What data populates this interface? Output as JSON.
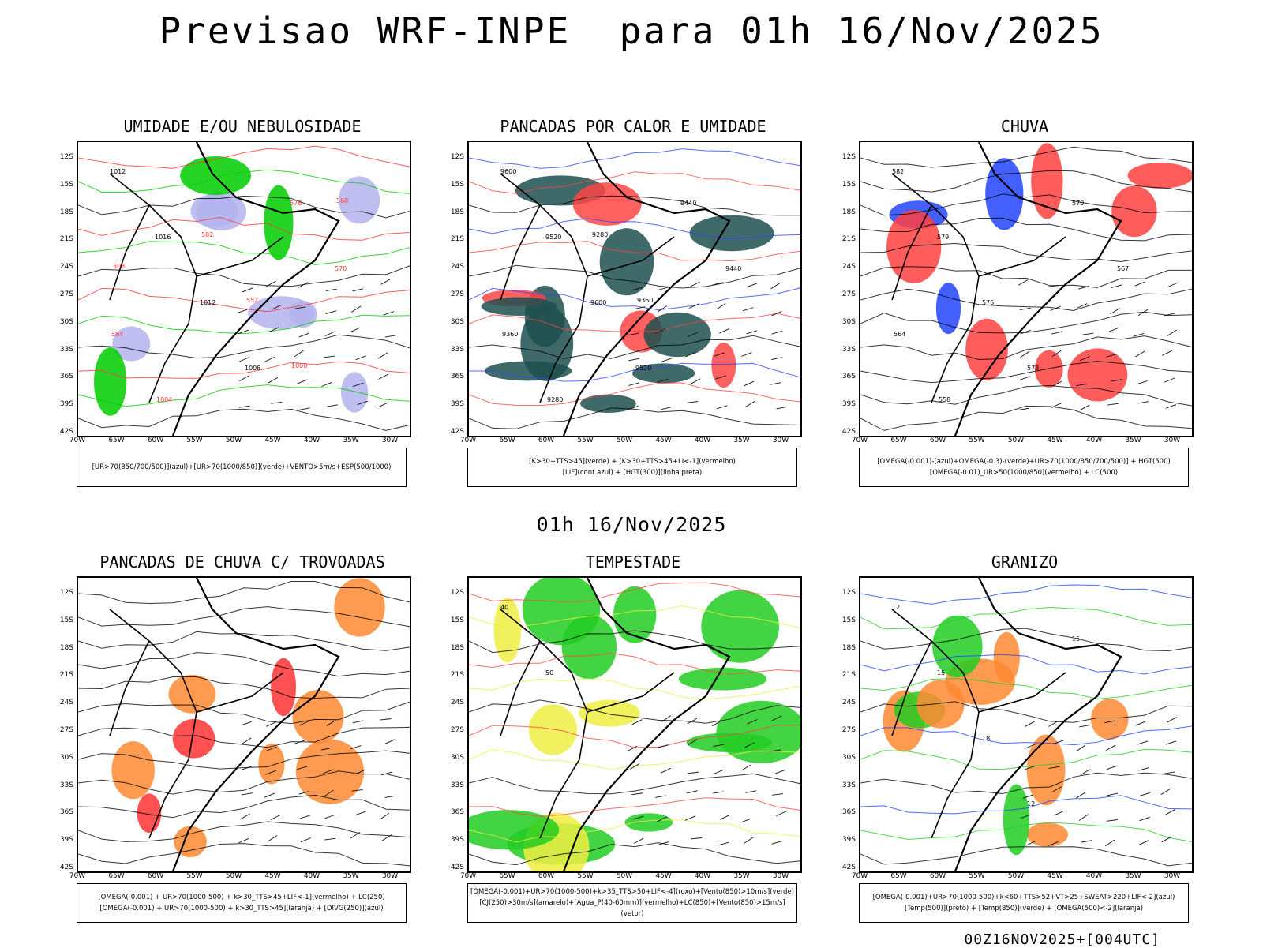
{
  "header": {
    "title": "Previsao WRF-INPE  para 01h 16/Nov/2025",
    "mid_title": "01h 16/Nov/2025",
    "footer_code": "00Z16NOV2025+[004UTC]"
  },
  "axes": {
    "lat_labels": [
      "12S",
      "15S",
      "18S",
      "21S",
      "24S",
      "27S",
      "30S",
      "33S",
      "36S",
      "39S",
      "42S"
    ],
    "lon_labels": [
      "70W",
      "65W",
      "60W",
      "55W",
      "50W",
      "45W",
      "40W",
      "35W",
      "30W"
    ]
  },
  "panels": [
    {
      "title": "UMIDADE E/OU NEBULOSIDADE",
      "legend": [
        "[UR>70(850/700/500)](azul)+[UR>70(1000/850)](verde)+VENTO>5m/s+ESP(500/1000)"
      ],
      "contour_labels": [
        "1012",
        "1016",
        "1012",
        "1008",
        "576",
        "570",
        "584",
        "1004",
        "582",
        "552",
        "1000",
        "568",
        "508"
      ],
      "colors": {
        "shade": "#b3b3ee",
        "contour_a": "#00cc00",
        "contour_b": "#ff3333"
      }
    },
    {
      "title": "PANCADAS POR CALOR E UMIDADE",
      "legend": [
        "[K>30+TTS>45](verde) + [K>30+TTS>45+LI<-1](vermelho)",
        "[LIF](cont.azul) + [HGT(300)](linha preta)"
      ],
      "contour_labels": [
        "9600",
        "9520",
        "9600",
        "9520",
        "9440",
        "9440",
        "9360",
        "9280",
        "9280",
        "9360"
      ],
      "colors": {
        "shade": "#1e4f4f",
        "contour_a": "#ff4444",
        "contour_b": "#3344ff"
      }
    },
    {
      "title": "CHUVA",
      "legend": [
        "[OMEGA(-0.001)-(azul)+OMEGA(-0.3)-(verde)+UR>70(1000/850/700/500)] + HGT(500)",
        "[OMEGA(-0.01)_UR>50(1000/850)(vermelho) + LC(500)"
      ],
      "contour_labels": [
        "582",
        "579",
        "576",
        "573",
        "570",
        "567",
        "564",
        "558"
      ],
      "colors": {
        "shade": "#ff4040",
        "contour_a": "#2244ff",
        "contour_b": "#00cc00"
      }
    },
    {
      "title": "PANCADAS DE CHUVA C/ TROVOADAS",
      "legend": [
        "[OMEGA(-0.001) + UR>70(1000-500) + k>30_TTS>45+LIF<-1](vermelho) + LC(250)",
        "[OMEGA(-0.001) + UR>70(1000-500) + k>30_TTS>45](laranja) + [DIVG(250)](azul)"
      ],
      "contour_labels": [],
      "colors": {
        "shade": "#ff8833",
        "contour_a": "#ff3333",
        "contour_b": "#2244ff"
      }
    },
    {
      "title": "TEMPESTADE",
      "legend": [
        "[OMEGA(-0.001)+UR>70(1000-500)+k>35_TTS>50+LIF<-4](roxo)+[Vento(850)>10m/s](verde)",
        "[CJ(250)>30m/s](amarelo)+[Agua_P(40-60mm)](vermelho)+LC(850)+[Vento(850)>15m/s](vetor)"
      ],
      "contour_labels": [
        "40",
        "50"
      ],
      "colors": {
        "shade": "#22cc22",
        "contour_a": "#eeee44",
        "contour_b": "#ff4444"
      }
    },
    {
      "title": "GRANIZO",
      "legend": [
        "[OMEGA(-0.001)+UR>70(1000-500)+k<60+TTS>52+VT>25+SWEAT>220+LIF<-2](azul)",
        "[Temp(500)](preto) + [Temp(850)](verde) + [OMEGA(500)<-2](laranja)"
      ],
      "contour_labels": [
        "12",
        "15",
        "18",
        "12",
        "15"
      ],
      "colors": {
        "shade": "#ff8833",
        "contour_a": "#22cc22",
        "contour_b": "#2244ff"
      }
    }
  ]
}
